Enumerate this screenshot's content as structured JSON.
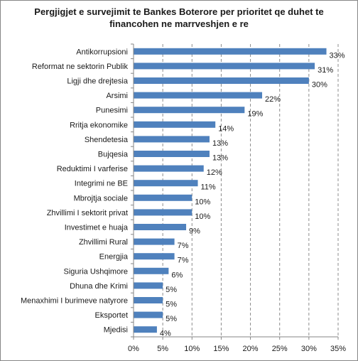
{
  "chart_data": {
    "type": "bar",
    "orientation": "horizontal",
    "title_lines": [
      "Pergjigjet e survejimit te Bankes Boterore per prioritet qe duhet te",
      "financohen ne marrveshjen e re"
    ],
    "categories": [
      "Antikorrupsioni",
      "Reformat ne sektorin Publik",
      "Ligji dhe drejtesia",
      "Arsimi",
      "Punesimi",
      "Rritja ekonomike",
      "Shendetesia",
      "Bujqesia",
      "Reduktimi I varferise",
      "Integrimi ne BE",
      "Mbrojtja sociale",
      "Zhvillimi I sektorit privat",
      "Investimet e huaja",
      "Zhvillimi Rural",
      "Energjia",
      "Siguria Ushqimore",
      "Dhuna dhe Krimi",
      "Menaxhimi I burimeve natyrore",
      "Eksportet",
      "Mjedisi"
    ],
    "values": [
      33,
      31,
      30,
      22,
      19,
      14,
      13,
      13,
      12,
      11,
      10,
      10,
      9,
      7,
      7,
      6,
      5,
      5,
      5,
      4
    ],
    "value_labels": [
      "33%",
      "31%",
      "30%",
      "22%",
      "19%",
      "14%",
      "13%",
      "13%",
      "12%",
      "11%",
      "10%",
      "10%",
      "9%",
      "7%",
      "7%",
      "6%",
      "5%",
      "5%",
      "5%",
      "4%"
    ],
    "xlim": [
      0,
      35
    ],
    "xticks": [
      0,
      5,
      10,
      15,
      20,
      25,
      30,
      35
    ],
    "xtick_labels": [
      "0%",
      "5%",
      "10%",
      "15%",
      "20%",
      "25%",
      "30%",
      "35%"
    ],
    "grid": "vertical-dashed",
    "bar_color": "#4f81bd",
    "legend": "none"
  }
}
